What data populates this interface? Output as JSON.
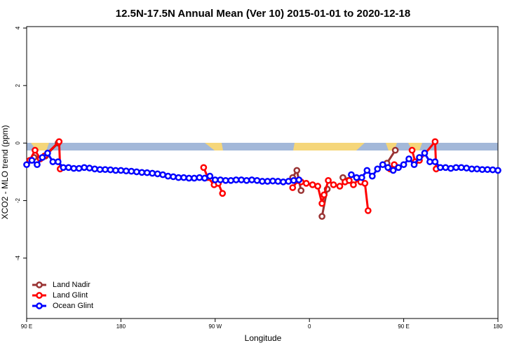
{
  "chart_data": {
    "type": "line",
    "title": "12.5N-17.5N Annual Mean (Ver 10)   2015-01-01 to 2020-12-18",
    "x_label": "Longitude",
    "y_label": "XCO2 - MLO trend (ppm)",
    "xlim": [
      90,
      540
    ],
    "xticks": [
      {
        "value": 90,
        "label": "90 E"
      },
      {
        "value": 180,
        "label": "180"
      },
      {
        "value": 270,
        "label": "90 W"
      },
      {
        "value": 360,
        "label": "0"
      },
      {
        "value": 450,
        "label": "90 E"
      },
      {
        "value": 540,
        "label": "180"
      }
    ],
    "ylim": [
      -6.1,
      4.05
    ],
    "yticks": [
      4,
      2,
      0,
      -2,
      -4
    ],
    "legend": "bottom-left",
    "series": [
      {
        "name": "Land Nadir",
        "color": "#993333",
        "x": [
          97,
          108,
          120,
          null,
          344,
          348,
          352,
          null,
          372,
          377,
          null,
          392,
          397,
          null,
          434,
          442
        ],
        "values": [
          -0.5,
          -0.45,
          0.0,
          null,
          -1.2,
          -0.95,
          -1.65,
          null,
          -2.55,
          -1.6,
          null,
          -1.2,
          -1.3,
          null,
          -0.7,
          -0.25
        ]
      },
      {
        "name": "Land Glint",
        "color": "#ff0000",
        "x": [
          93,
          98,
          103,
          107,
          121,
          122,
          null,
          259,
          263,
          269,
          273,
          277,
          null,
          344,
          349,
          352,
          357,
          363,
          368,
          372,
          374,
          378,
          383,
          389,
          394,
          398,
          402,
          407,
          409,
          413,
          416,
          null,
          437,
          441,
          null,
          458,
          461,
          465,
          480,
          481
        ],
        "values": [
          -0.6,
          -0.25,
          -0.55,
          -0.45,
          0.05,
          -0.9,
          null,
          -0.85,
          -1.2,
          -1.45,
          -1.4,
          -1.75,
          null,
          -1.55,
          -1.3,
          -1.35,
          -1.4,
          -1.45,
          -1.5,
          -2.1,
          -1.8,
          -1.3,
          -1.45,
          -1.5,
          -1.35,
          -1.3,
          -1.45,
          -1.25,
          -1.35,
          -1.4,
          -2.35,
          null,
          -0.9,
          -0.75,
          null,
          -0.25,
          -0.65,
          -0.6,
          0.05,
          -0.9
        ]
      },
      {
        "name": "Ocean Glint",
        "color": "#0000ff",
        "x": [
          90,
          95,
          100,
          105,
          110,
          115,
          120,
          125,
          130,
          135,
          140,
          145,
          150,
          155,
          160,
          165,
          170,
          175,
          180,
          185,
          190,
          195,
          200,
          205,
          210,
          215,
          220,
          225,
          230,
          235,
          240,
          245,
          250,
          255,
          260,
          265,
          270,
          275,
          280,
          285,
          290,
          295,
          300,
          305,
          310,
          315,
          320,
          325,
          330,
          335,
          340,
          345,
          350,
          null,
          400,
          405,
          410,
          415,
          420,
          425,
          430,
          435,
          440,
          445,
          450,
          455,
          460,
          465,
          470,
          475,
          480,
          485,
          490,
          495,
          500,
          505,
          510,
          515,
          520,
          525,
          530,
          535,
          540
        ],
        "values": [
          -0.75,
          -0.6,
          -0.75,
          -0.5,
          -0.35,
          -0.65,
          -0.65,
          -0.85,
          -0.85,
          -0.88,
          -0.88,
          -0.85,
          -0.87,
          -0.9,
          -0.92,
          -0.92,
          -0.93,
          -0.95,
          -0.95,
          -0.97,
          -0.98,
          -1.0,
          -1.02,
          -1.03,
          -1.05,
          -1.07,
          -1.1,
          -1.15,
          -1.17,
          -1.2,
          -1.2,
          -1.22,
          -1.22,
          -1.2,
          -1.22,
          -1.15,
          -1.28,
          -1.28,
          -1.3,
          -1.3,
          -1.28,
          -1.28,
          -1.3,
          -1.28,
          -1.3,
          -1.33,
          -1.33,
          -1.32,
          -1.33,
          -1.35,
          -1.33,
          -1.3,
          -1.28,
          null,
          -1.1,
          -1.2,
          -1.2,
          -0.95,
          -1.15,
          -0.9,
          -0.75,
          -0.85,
          -0.95,
          -0.85,
          -0.75,
          -0.55,
          -0.75,
          -0.5,
          -0.35,
          -0.65,
          -0.65,
          -0.85,
          -0.85,
          -0.88,
          -0.85,
          -0.85,
          -0.87,
          -0.9,
          -0.9,
          -0.92,
          -0.92,
          -0.93,
          -0.95
        ]
      }
    ]
  }
}
